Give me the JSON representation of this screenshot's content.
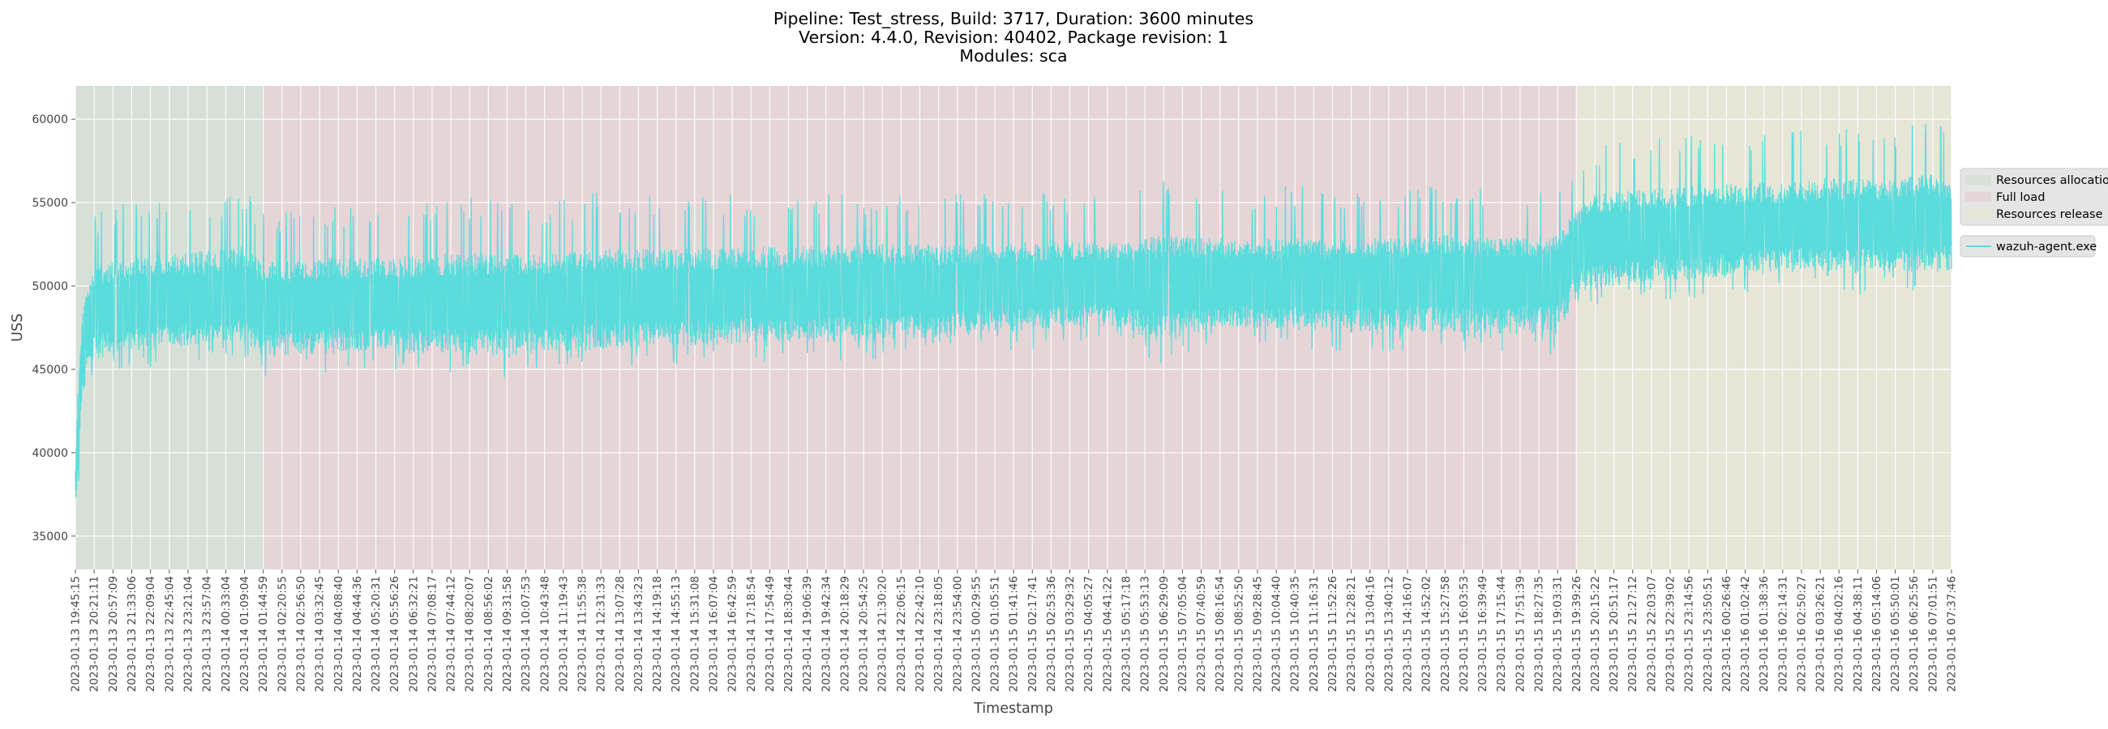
{
  "title_lines": [
    "Pipeline: Test_stress, Build: 3717, Duration: 3600 minutes",
    "Version: 4.4.0, Revision: 40402, Package revision: 1",
    "Modules: sca"
  ],
  "colors": {
    "axes_bg": "#e5e5e5",
    "grid": "#ffffff",
    "series": "#5adcdc",
    "phase_allocation": "#d7e0d7",
    "phase_full_load": "#e5d5d7",
    "phase_release": "#e6e6d7"
  },
  "chart_data": {
    "type": "line",
    "title": "Pipeline: Test_stress, Build: 3717, Duration: 3600 minutes\nVersion: 4.4.0, Revision: 40402, Package revision: 1\nModules: sca",
    "xlabel": "Timestamp",
    "ylabel": "USS",
    "ylim": [
      33000,
      62000
    ],
    "yticks": [
      35000,
      40000,
      45000,
      50000,
      55000,
      60000
    ],
    "grid": true,
    "legend_position": "right",
    "x_axis": {
      "start": "2023-01-13 19:45:15",
      "end": "2023-01-16 07:37:46"
    },
    "xtick_labels": [
      "2023-01-13 19:45:15",
      "2023-01-13 20:21:11",
      "2023-01-13 20:57:09",
      "2023-01-13 21:33:06",
      "2023-01-13 22:09:04",
      "2023-01-13 22:45:04",
      "2023-01-13 23:21:04",
      "2023-01-13 23:57:04",
      "2023-01-14 00:33:04",
      "2023-01-14 01:09:04",
      "2023-01-14 01:44:59",
      "2023-01-14 02:20:55",
      "2023-01-14 02:56:50",
      "2023-01-14 03:32:45",
      "2023-01-14 04:08:40",
      "2023-01-14 04:44:36",
      "2023-01-14 05:20:31",
      "2023-01-14 05:56:26",
      "2023-01-14 06:32:21",
      "2023-01-14 07:08:17",
      "2023-01-14 07:44:12",
      "2023-01-14 08:20:07",
      "2023-01-14 08:56:02",
      "2023-01-14 09:31:58",
      "2023-01-14 10:07:53",
      "2023-01-14 10:43:48",
      "2023-01-14 11:19:43",
      "2023-01-14 11:55:38",
      "2023-01-14 12:31:33",
      "2023-01-14 13:07:28",
      "2023-01-14 13:43:23",
      "2023-01-14 14:19:18",
      "2023-01-14 14:55:13",
      "2023-01-14 15:31:08",
      "2023-01-14 16:07:04",
      "2023-01-14 16:42:59",
      "2023-01-14 17:18:54",
      "2023-01-14 17:54:49",
      "2023-01-14 18:30:44",
      "2023-01-14 19:06:39",
      "2023-01-14 19:42:34",
      "2023-01-14 20:18:29",
      "2023-01-14 20:54:25",
      "2023-01-14 21:30:20",
      "2023-01-14 22:06:15",
      "2023-01-14 22:42:10",
      "2023-01-14 23:18:05",
      "2023-01-14 23:54:00",
      "2023-01-15 00:29:55",
      "2023-01-15 01:05:51",
      "2023-01-15 01:41:46",
      "2023-01-15 02:17:41",
      "2023-01-15 02:53:36",
      "2023-01-15 03:29:32",
      "2023-01-15 04:05:27",
      "2023-01-15 04:41:22",
      "2023-01-15 05:17:18",
      "2023-01-15 05:53:13",
      "2023-01-15 06:29:09",
      "2023-01-15 07:05:04",
      "2023-01-15 07:40:59",
      "2023-01-15 08:16:54",
      "2023-01-15 08:52:50",
      "2023-01-15 09:28:45",
      "2023-01-15 10:04:40",
      "2023-01-15 10:40:35",
      "2023-01-15 11:16:31",
      "2023-01-15 11:52:26",
      "2023-01-15 12:28:21",
      "2023-01-15 13:04:16",
      "2023-01-15 13:40:12",
      "2023-01-15 14:16:07",
      "2023-01-15 14:52:02",
      "2023-01-15 15:27:58",
      "2023-01-15 16:03:53",
      "2023-01-15 16:39:49",
      "2023-01-15 17:15:44",
      "2023-01-15 17:51:39",
      "2023-01-15 18:27:35",
      "2023-01-15 19:03:31",
      "2023-01-15 19:39:26",
      "2023-01-15 20:15:22",
      "2023-01-15 20:51:17",
      "2023-01-15 21:27:12",
      "2023-01-15 22:03:07",
      "2023-01-15 22:39:02",
      "2023-01-15 23:14:56",
      "2023-01-15 23:50:51",
      "2023-01-16 00:26:46",
      "2023-01-16 01:02:42",
      "2023-01-16 01:38:36",
      "2023-01-16 02:14:31",
      "2023-01-16 02:50:27",
      "2023-01-16 03:26:21",
      "2023-01-16 04:02:16",
      "2023-01-16 04:38:11",
      "2023-01-16 05:14:06",
      "2023-01-16 05:50:01",
      "2023-01-16 06:25:56",
      "2023-01-16 07:01:51",
      "2023-01-16 07:37:46"
    ],
    "phases": [
      {
        "name": "Resources allocation",
        "start": "2023-01-13 19:45:15",
        "end": "2023-01-14 01:44:59",
        "color": "#d7e0d7"
      },
      {
        "name": "Full load",
        "start": "2023-01-14 01:44:59",
        "end": "2023-01-15 19:39:26",
        "color": "#e5d5d7"
      },
      {
        "name": "Resources release",
        "start": "2023-01-15 19:39:26",
        "end": "2023-01-16 07:37:46",
        "color": "#e6e6d7"
      }
    ],
    "series": [
      {
        "name": "wazuh-agent.exe",
        "color": "#5adcdc",
        "envelope_note": "approximate sampled band read from plot",
        "x": [
          "2023-01-13 19:45:15",
          "2023-01-13 19:50:00",
          "2023-01-13 20:00:00",
          "2023-01-13 20:21:11",
          "2023-01-13 21:33:06",
          "2023-01-13 22:45:04",
          "2023-01-13 23:57:04",
          "2023-01-14 01:09:04",
          "2023-01-14 01:44:59",
          "2023-01-14 03:32:45",
          "2023-01-14 05:20:31",
          "2023-01-14 07:08:17",
          "2023-01-14 08:56:02",
          "2023-01-14 10:43:48",
          "2023-01-14 12:31:33",
          "2023-01-14 14:19:18",
          "2023-01-14 16:07:04",
          "2023-01-14 17:54:49",
          "2023-01-14 19:42:34",
          "2023-01-14 21:30:20",
          "2023-01-14 23:18:05",
          "2023-01-15 01:05:51",
          "2023-01-15 02:53:36",
          "2023-01-15 04:41:22",
          "2023-01-15 06:29:09",
          "2023-01-15 08:16:54",
          "2023-01-15 10:04:40",
          "2023-01-15 11:52:26",
          "2023-01-15 13:40:12",
          "2023-01-15 15:27:58",
          "2023-01-15 17:15:44",
          "2023-01-15 19:03:31",
          "2023-01-15 19:39:26",
          "2023-01-15 20:15:22",
          "2023-01-15 21:27:12",
          "2023-01-15 22:39:02",
          "2023-01-15 23:50:51",
          "2023-01-16 01:02:42",
          "2023-01-16 02:14:31",
          "2023-01-16 03:26:21",
          "2023-01-16 04:38:11",
          "2023-01-16 05:50:01",
          "2023-01-16 07:01:51",
          "2023-01-16 07:37:46"
        ],
        "lower": [
          36500,
          36300,
          43500,
          44500,
          45000,
          45200,
          45500,
          45700,
          44500,
          44800,
          44800,
          44800,
          44500,
          44600,
          45000,
          45200,
          45300,
          45400,
          45400,
          45500,
          45700,
          46000,
          46300,
          46500,
          45200,
          46500,
          46400,
          46000,
          46000,
          46000,
          45800,
          45800,
          48000,
          48500,
          49000,
          49200,
          49300,
          49500,
          50000,
          49800,
          49500,
          49700,
          49500,
          49800
        ],
        "upper": [
          40000,
          48000,
          50500,
          54500,
          55000,
          55300,
          55500,
          55800,
          54500,
          55000,
          55000,
          55200,
          55500,
          55000,
          55700,
          55500,
          55500,
          55600,
          55500,
          55800,
          55500,
          55500,
          55600,
          55500,
          56500,
          56000,
          56000,
          56000,
          55800,
          56200,
          55800,
          56000,
          57000,
          58500,
          58800,
          59000,
          59200,
          59500,
          59200,
          59800,
          59600,
          59400,
          60300,
          58800
        ],
        "mean": [
          38000,
          42000,
          47500,
          48500,
          49000,
          49200,
          49300,
          49500,
          48800,
          49000,
          49000,
          49100,
          49200,
          49300,
          49400,
          49500,
          49600,
          49700,
          49800,
          49900,
          50000,
          50100,
          50200,
          50300,
          50200,
          50300,
          50200,
          50300,
          50400,
          50500,
          50500,
          50600,
          52500,
          53000,
          53200,
          53300,
          53400,
          53500,
          53600,
          53700,
          53800,
          53900,
          54000,
          54000
        ]
      }
    ],
    "legend": [
      {
        "label": "Resources allocation",
        "kind": "patch"
      },
      {
        "label": "Full load",
        "kind": "patch"
      },
      {
        "label": "Resources release",
        "kind": "patch"
      },
      {
        "label": "wazuh-agent.exe",
        "kind": "line"
      }
    ]
  }
}
